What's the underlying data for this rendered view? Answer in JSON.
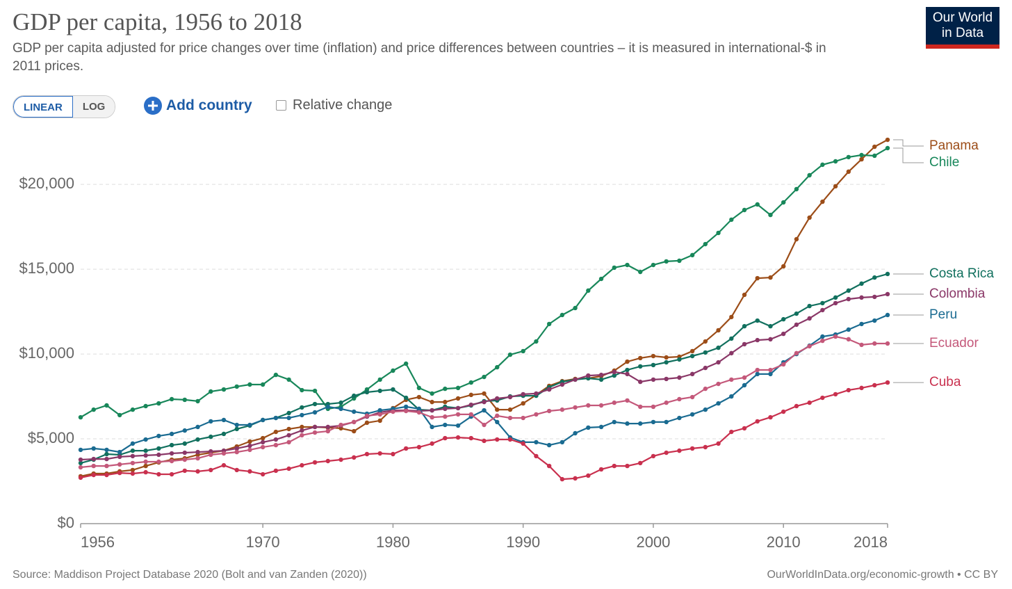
{
  "header": {
    "logo": [
      "Our World",
      "in Data"
    ]
  },
  "controls": {
    "linear": "LINEAR",
    "log": "LOG",
    "add": "Add country",
    "relative": "Relative change"
  },
  "footer": {
    "source": "Source: Maddison Project Database 2020 (Bolt and van Zanden (2020))",
    "url": "OurWorldInData.org/economic-growth • CC BY"
  },
  "chart_data": {
    "type": "line",
    "title": "GDP per capita, 1956 to 2018",
    "subtitle": "GDP per capita adjusted for price changes over time (inflation) and price differences between countries – it is measured in international-$ in 2011 prices.",
    "grid": true,
    "xlim": [
      1956,
      2018
    ],
    "xticks": [
      1956,
      1970,
      1980,
      1990,
      2000,
      2010,
      2018
    ],
    "ylim": [
      0,
      23000
    ],
    "yticks": [
      {
        "value": 0,
        "label": "$0"
      },
      {
        "value": 5000,
        "label": "$5,000"
      },
      {
        "value": 10000,
        "label": "$10,000"
      },
      {
        "value": 15000,
        "label": "$15,000"
      },
      {
        "value": 20000,
        "label": "$20,000"
      }
    ],
    "x": [
      1956,
      1957,
      1958,
      1959,
      1960,
      1961,
      1962,
      1963,
      1964,
      1965,
      1966,
      1967,
      1968,
      1969,
      1970,
      1971,
      1972,
      1973,
      1974,
      1975,
      1976,
      1977,
      1978,
      1979,
      1980,
      1981,
      1982,
      1983,
      1984,
      1985,
      1986,
      1987,
      1988,
      1989,
      1990,
      1991,
      1992,
      1993,
      1994,
      1995,
      1996,
      1997,
      1998,
      1999,
      2000,
      2001,
      2002,
      2003,
      2004,
      2005,
      2006,
      2007,
      2008,
      2009,
      2010,
      2011,
      2012,
      2013,
      2014,
      2015,
      2016,
      2017,
      2018
    ],
    "series": [
      {
        "name": "Panama",
        "color": "#9c4d18",
        "values": [
          2790,
          2950,
          2950,
          3080,
          3160,
          3400,
          3610,
          3770,
          3850,
          4060,
          4180,
          4300,
          4550,
          4840,
          5040,
          5410,
          5580,
          5700,
          5700,
          5660,
          5620,
          5450,
          5950,
          6070,
          6810,
          7300,
          7460,
          7170,
          7170,
          7380,
          7590,
          7670,
          6720,
          6720,
          7090,
          7590,
          8120,
          8400,
          8530,
          8570,
          8690,
          9020,
          9550,
          9760,
          9880,
          9800,
          9840,
          10170,
          10740,
          11400,
          12180,
          13490,
          14470,
          14510,
          15170,
          16770,
          18040,
          18980,
          19890,
          20750,
          21480,
          22220,
          22630
        ]
      },
      {
        "name": "Chile",
        "color": "#18875a",
        "values": [
          6270,
          6720,
          6970,
          6400,
          6720,
          6930,
          7090,
          7340,
          7300,
          7220,
          7790,
          7910,
          8080,
          8200,
          8200,
          8770,
          8490,
          7870,
          7830,
          6770,
          6890,
          7380,
          7910,
          8490,
          9020,
          9430,
          8000,
          7670,
          7950,
          8000,
          8320,
          8650,
          9220,
          9960,
          10170,
          10740,
          11770,
          12300,
          12710,
          13740,
          14430,
          15090,
          15250,
          14840,
          15250,
          15460,
          15500,
          15830,
          16480,
          17140,
          17920,
          18490,
          18820,
          18200,
          18940,
          19720,
          20540,
          21160,
          21360,
          21610,
          21730,
          21690,
          22140
        ]
      },
      {
        "name": "Costa Rica",
        "color": "#11705e",
        "values": [
          3570,
          3770,
          4100,
          4060,
          4300,
          4300,
          4430,
          4630,
          4720,
          4960,
          5120,
          5290,
          5580,
          5780,
          6110,
          6230,
          6520,
          6850,
          7050,
          7050,
          7130,
          7540,
          7750,
          7830,
          7910,
          7420,
          6720,
          6680,
          6890,
          6810,
          6970,
          7220,
          7260,
          7500,
          7540,
          7540,
          8040,
          8360,
          8490,
          8570,
          8490,
          8730,
          9060,
          9270,
          9350,
          9510,
          9680,
          9880,
          10090,
          10370,
          10910,
          11640,
          11970,
          11640,
          12050,
          12380,
          12830,
          13000,
          13330,
          13740,
          14150,
          14510,
          14720
        ]
      },
      {
        "name": "Colombia",
        "color": "#8a3767",
        "values": [
          3770,
          3810,
          3810,
          3940,
          3980,
          4020,
          4060,
          4140,
          4180,
          4220,
          4260,
          4300,
          4430,
          4590,
          4800,
          4960,
          5210,
          5490,
          5700,
          5700,
          5780,
          5990,
          6310,
          6560,
          6680,
          6680,
          6640,
          6680,
          6770,
          6810,
          7010,
          7170,
          7380,
          7460,
          7630,
          7670,
          7910,
          8200,
          8490,
          8730,
          8770,
          8940,
          8820,
          8360,
          8490,
          8530,
          8610,
          8820,
          9180,
          9510,
          10050,
          10580,
          10820,
          10870,
          11190,
          11730,
          12100,
          12590,
          13000,
          13240,
          13330,
          13370,
          13530
        ]
      },
      {
        "name": "Peru",
        "color": "#1a6b91",
        "values": [
          4350,
          4430,
          4350,
          4220,
          4720,
          4960,
          5170,
          5290,
          5490,
          5700,
          6030,
          6110,
          5820,
          5820,
          6110,
          6230,
          6230,
          6400,
          6560,
          6890,
          6770,
          6600,
          6480,
          6680,
          6770,
          6890,
          6770,
          5700,
          5820,
          5780,
          6310,
          6680,
          5990,
          5080,
          4800,
          4800,
          4630,
          4800,
          5330,
          5660,
          5700,
          5990,
          5900,
          5900,
          5990,
          5990,
          6230,
          6440,
          6720,
          7090,
          7500,
          8160,
          8820,
          8820,
          9510,
          10000,
          10490,
          11030,
          11150,
          11440,
          11770,
          11970,
          12300
        ]
      },
      {
        "name": "Ecuador",
        "color": "#c4587a",
        "values": [
          3320,
          3400,
          3400,
          3490,
          3570,
          3650,
          3650,
          3690,
          3770,
          3850,
          4060,
          4140,
          4220,
          4350,
          4510,
          4630,
          4800,
          5210,
          5370,
          5450,
          5820,
          5990,
          6360,
          6440,
          6600,
          6640,
          6560,
          6270,
          6310,
          6440,
          6440,
          5820,
          6360,
          6230,
          6230,
          6440,
          6640,
          6720,
          6850,
          6970,
          6970,
          7130,
          7260,
          6890,
          6890,
          7130,
          7340,
          7460,
          7950,
          8240,
          8490,
          8610,
          9060,
          9060,
          9390,
          10050,
          10460,
          10780,
          11030,
          10870,
          10540,
          10620,
          10620
        ]
      },
      {
        "name": "Cuba",
        "color": "#c9304e",
        "values": [
          2710,
          2870,
          2870,
          2990,
          2950,
          3030,
          2910,
          2910,
          3120,
          3080,
          3160,
          3440,
          3160,
          3080,
          2910,
          3120,
          3240,
          3440,
          3610,
          3690,
          3770,
          3900,
          4100,
          4140,
          4100,
          4430,
          4510,
          4720,
          5040,
          5080,
          5040,
          4880,
          4960,
          4960,
          4720,
          3980,
          3400,
          2620,
          2670,
          2830,
          3200,
          3400,
          3400,
          3570,
          3980,
          4180,
          4300,
          4430,
          4510,
          4720,
          5410,
          5620,
          6030,
          6270,
          6600,
          6930,
          7130,
          7420,
          7630,
          7870,
          8000,
          8160,
          8320
        ]
      }
    ]
  }
}
